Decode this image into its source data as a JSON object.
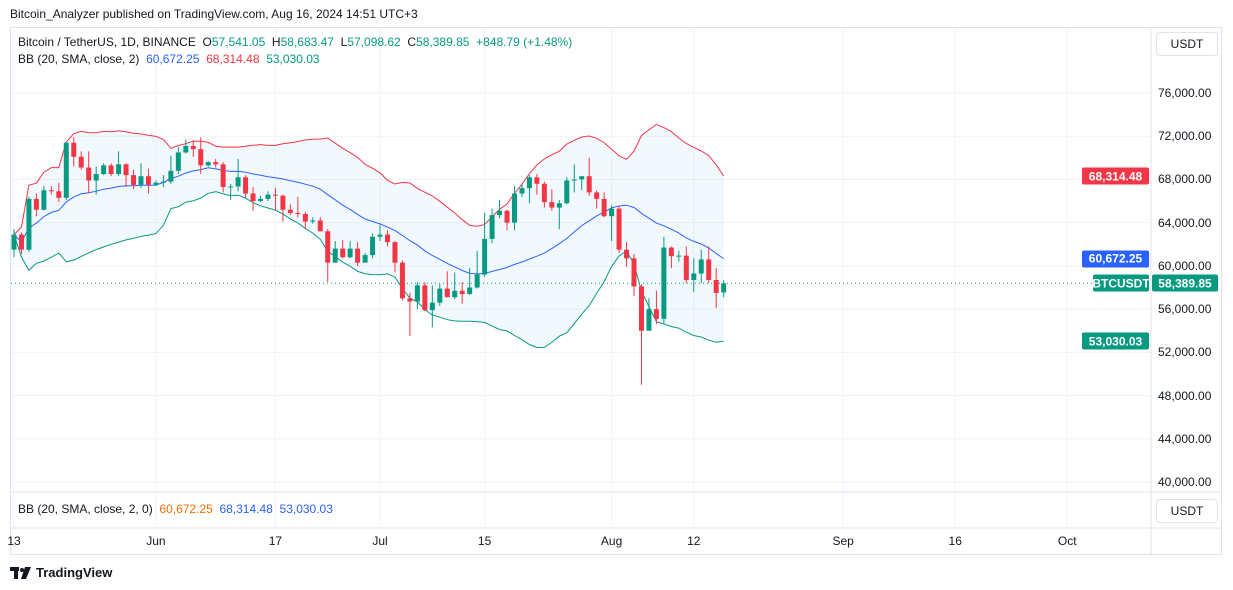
{
  "published": "Bitcoin_Analyzer published on TradingView.com, Aug 16, 2024 14:51 UTC+3",
  "legend": {
    "symbol": "Bitcoin / TetherUS, 1D, BINANCE",
    "o_label": "O",
    "o": "57,541.05",
    "h_label": "H",
    "h": "58,683.47",
    "l_label": "L",
    "l": "57,098.62",
    "c_label": "C",
    "c": "58,389.85",
    "change": "+848.79 (+1.48%)",
    "bb": "BB (20, SMA, close, 2)",
    "bb_basis": "60,672.25",
    "bb_upper": "68,314.48",
    "bb_lower": "53,030.03",
    "bb2": "BB (20, SMA, close, 2, 0)"
  },
  "currency_button": "USDT",
  "badges": {
    "upper": "68,314.48",
    "basis": "60,672.25",
    "symbol": "BTCUSDT",
    "last": "58,389.85",
    "lower": "53,030.03"
  },
  "brand": "TradingView",
  "colors": {
    "up": "#089981",
    "down": "#f23645",
    "basis": "#2962ff",
    "upper": "#f23645",
    "lower": "#089981",
    "band_fill": "#2196f3"
  },
  "chart_data": {
    "type": "candlestick",
    "indicator": {
      "name": "Bollinger Bands",
      "length": 20,
      "ma": "SMA",
      "source": "close",
      "mult": 2
    },
    "ylim": [
      38000,
      80000
    ],
    "y_ticks": [
      40000,
      44000,
      48000,
      52000,
      56000,
      60000,
      64000,
      68000,
      72000,
      76000
    ],
    "y_tick_labels": [
      "40,000.00",
      "44,000.00",
      "48,000.00",
      "52,000.00",
      "56,000.00",
      "60,000.00",
      "64,000.00",
      "68,000.00",
      "72,000.00",
      "76,000.00"
    ],
    "x_ticks": [
      {
        "label": "13",
        "date": "2024-05-13"
      },
      {
        "label": "Jun",
        "date": "2024-06-01"
      },
      {
        "label": "17",
        "date": "2024-06-17"
      },
      {
        "label": "Jul",
        "date": "2024-07-01"
      },
      {
        "label": "15",
        "date": "2024-07-15"
      },
      {
        "label": "Aug",
        "date": "2024-08-01"
      },
      {
        "label": "12",
        "date": "2024-08-12"
      },
      {
        "label": "Sep",
        "date": "2024-09-01"
      },
      {
        "label": "16",
        "date": "2024-09-16"
      },
      {
        "label": "Oct",
        "date": "2024-10-01"
      }
    ],
    "candles": [
      [
        "2024-05-13",
        61500,
        63400,
        60800,
        62900
      ],
      [
        "2024-05-14",
        62900,
        63100,
        61100,
        61500
      ],
      [
        "2024-05-15",
        61500,
        66400,
        61300,
        66200
      ],
      [
        "2024-05-16",
        66200,
        66700,
        64600,
        65200
      ],
      [
        "2024-05-17",
        65200,
        67400,
        65100,
        67000
      ],
      [
        "2024-05-18",
        67000,
        67400,
        66600,
        66900
      ],
      [
        "2024-05-19",
        66900,
        67700,
        65900,
        66300
      ],
      [
        "2024-05-20",
        66300,
        71500,
        66100,
        71400
      ],
      [
        "2024-05-21",
        71400,
        71900,
        69200,
        70100
      ],
      [
        "2024-05-22",
        70100,
        70600,
        68900,
        69100
      ],
      [
        "2024-05-23",
        69100,
        70600,
        66700,
        67900
      ],
      [
        "2024-05-24",
        67900,
        69200,
        66600,
        68500
      ],
      [
        "2024-05-25",
        68500,
        69500,
        68400,
        69300
      ],
      [
        "2024-05-26",
        69300,
        69500,
        68300,
        68500
      ],
      [
        "2024-05-27",
        68500,
        70600,
        68300,
        69400
      ],
      [
        "2024-05-28",
        69400,
        69500,
        67300,
        68400
      ],
      [
        "2024-05-29",
        68400,
        68900,
        67100,
        67500
      ],
      [
        "2024-05-30",
        67500,
        69500,
        67200,
        68300
      ],
      [
        "2024-05-31",
        68300,
        69000,
        66700,
        67500
      ],
      [
        "2024-06-01",
        67500,
        67900,
        67400,
        67700
      ],
      [
        "2024-06-02",
        67700,
        68400,
        67300,
        67800
      ],
      [
        "2024-06-03",
        67800,
        70200,
        67600,
        68800
      ],
      [
        "2024-06-04",
        68800,
        71000,
        68500,
        70500
      ],
      [
        "2024-06-05",
        70500,
        71700,
        70400,
        71100
      ],
      [
        "2024-06-06",
        71100,
        71600,
        70100,
        70800
      ],
      [
        "2024-06-07",
        70800,
        71900,
        68500,
        69300
      ],
      [
        "2024-06-08",
        69300,
        69700,
        69200,
        69600
      ],
      [
        "2024-06-09",
        69600,
        69900,
        69100,
        69400
      ],
      [
        "2024-06-10",
        69400,
        69600,
        66800,
        67300
      ],
      [
        "2024-06-11",
        67300,
        67600,
        66100,
        67350
      ],
      [
        "2024-06-12",
        67350,
        69900,
        66900,
        68200
      ],
      [
        "2024-06-13",
        68200,
        68400,
        66300,
        66700
      ],
      [
        "2024-06-14",
        66700,
        67300,
        65100,
        66000
      ],
      [
        "2024-06-15",
        66000,
        66500,
        65900,
        66200
      ],
      [
        "2024-06-16",
        66200,
        66900,
        66000,
        66600
      ],
      [
        "2024-06-17",
        66600,
        67200,
        65100,
        66500
      ],
      [
        "2024-06-18",
        66500,
        66600,
        64100,
        65200
      ],
      [
        "2024-06-19",
        65200,
        65700,
        64700,
        64900
      ],
      [
        "2024-06-20",
        64900,
        66400,
        64500,
        64800
      ],
      [
        "2024-06-21",
        64800,
        65000,
        63400,
        64100
      ],
      [
        "2024-06-22",
        64100,
        64500,
        63900,
        64200
      ],
      [
        "2024-06-23",
        64200,
        64500,
        63200,
        63200
      ],
      [
        "2024-06-24",
        63200,
        63400,
        58500,
        60300
      ],
      [
        "2024-06-25",
        60300,
        62300,
        60300,
        61600
      ],
      [
        "2024-06-26",
        61600,
        62400,
        60700,
        60800
      ],
      [
        "2024-06-27",
        60800,
        62300,
        60700,
        61600
      ],
      [
        "2024-06-28",
        61600,
        62200,
        60000,
        60300
      ],
      [
        "2024-06-29",
        60300,
        61200,
        60300,
        61000
      ],
      [
        "2024-06-30",
        61000,
        63000,
        60700,
        62700
      ],
      [
        "2024-07-01",
        62700,
        63800,
        62300,
        62900
      ],
      [
        "2024-07-02",
        62900,
        63300,
        61800,
        62200
      ],
      [
        "2024-07-03",
        62200,
        62300,
        59400,
        60300
      ],
      [
        "2024-07-04",
        60300,
        60500,
        56800,
        57000
      ],
      [
        "2024-07-05",
        57000,
        57500,
        53500,
        56700
      ],
      [
        "2024-07-06",
        56700,
        58500,
        56000,
        58200
      ],
      [
        "2024-07-07",
        58200,
        58500,
        55800,
        55900
      ],
      [
        "2024-07-08",
        55900,
        58200,
        54300,
        56600
      ],
      [
        "2024-07-09",
        56600,
        58300,
        56300,
        57900
      ],
      [
        "2024-07-10",
        57900,
        59500,
        57100,
        57100
      ],
      [
        "2024-07-11",
        57100,
        59400,
        56900,
        57700
      ],
      [
        "2024-07-12",
        57700,
        58500,
        56500,
        57400
      ],
      [
        "2024-07-13",
        57400,
        59800,
        57300,
        58000
      ],
      [
        "2024-07-14",
        58000,
        61400,
        57900,
        59200
      ],
      [
        "2024-07-15",
        59200,
        64900,
        59000,
        62500
      ],
      [
        "2024-07-16",
        62500,
        65300,
        62100,
        64700
      ],
      [
        "2024-07-17",
        64700,
        66100,
        64400,
        65100
      ],
      [
        "2024-07-18",
        65100,
        65200,
        63300,
        64000
      ],
      [
        "2024-07-19",
        64000,
        67400,
        63300,
        66700
      ],
      [
        "2024-07-20",
        66700,
        67600,
        66400,
        67200
      ],
      [
        "2024-07-21",
        67200,
        68400,
        65800,
        68200
      ],
      [
        "2024-07-22",
        68200,
        68500,
        66600,
        67600
      ],
      [
        "2024-07-23",
        67600,
        67800,
        65400,
        65900
      ],
      [
        "2024-07-24",
        65900,
        67100,
        65100,
        65400
      ],
      [
        "2024-07-25",
        65400,
        66100,
        63400,
        65800
      ],
      [
        "2024-07-26",
        65800,
        68200,
        65700,
        67900
      ],
      [
        "2024-07-27",
        67900,
        69400,
        66800,
        68000
      ],
      [
        "2024-07-28",
        68000,
        68300,
        67000,
        68300
      ],
      [
        "2024-07-29",
        68300,
        70000,
        66500,
        66800
      ],
      [
        "2024-07-30",
        66800,
        67000,
        65300,
        66200
      ],
      [
        "2024-07-31",
        66200,
        66800,
        64500,
        64600
      ],
      [
        "2024-08-01",
        64600,
        65600,
        62300,
        65300
      ],
      [
        "2024-08-02",
        65300,
        65600,
        61200,
        61500
      ],
      [
        "2024-08-03",
        61500,
        62200,
        59900,
        60700
      ],
      [
        "2024-08-04",
        60700,
        61100,
        57200,
        58100
      ],
      [
        "2024-08-05",
        58100,
        58300,
        49000,
        54000
      ],
      [
        "2024-08-06",
        54000,
        57000,
        54000,
        56000
      ],
      [
        "2024-08-07",
        56000,
        57700,
        54600,
        55100
      ],
      [
        "2024-08-08",
        55100,
        62700,
        54700,
        61700
      ],
      [
        "2024-08-09",
        61700,
        61800,
        59800,
        60900
      ],
      [
        "2024-08-10",
        60900,
        61400,
        60400,
        60950
      ],
      [
        "2024-08-11",
        60950,
        61800,
        58400,
        58700
      ],
      [
        "2024-08-12",
        58700,
        60700,
        57600,
        59300
      ],
      [
        "2024-08-13",
        59300,
        61500,
        58400,
        60600
      ],
      [
        "2024-08-14",
        60600,
        61800,
        58400,
        58700
      ],
      [
        "2024-08-15",
        58700,
        59800,
        56100,
        57500
      ],
      [
        "2024-08-16",
        57541.05,
        58683.47,
        57098.62,
        58389.85
      ]
    ],
    "last_bb": {
      "basis": 60672.25,
      "upper": 68314.48,
      "lower": 53030.03
    },
    "last_price": 58389.85
  }
}
